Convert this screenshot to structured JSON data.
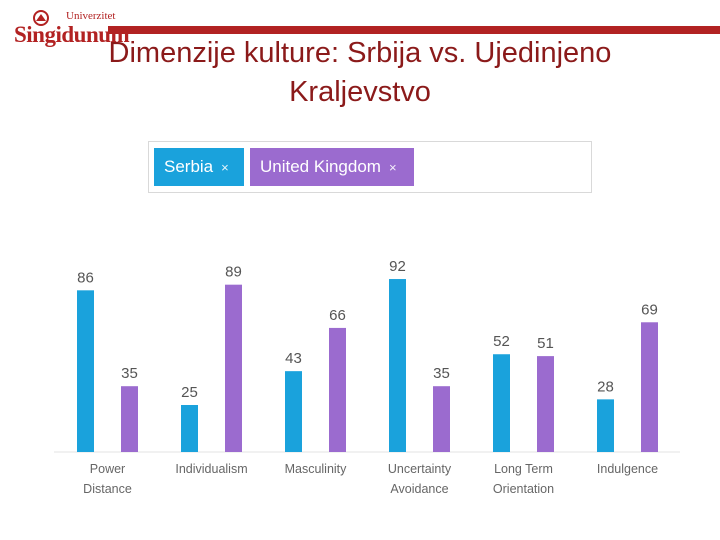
{
  "header": {
    "logo_small": "Univerzitet",
    "logo_big": "Singidunum",
    "title": "Dimenzije kulture: Srbija vs. Ujedinjeno\nKraljevstvo"
  },
  "selector": {
    "chips": [
      {
        "label": "Serbia",
        "close": "×"
      },
      {
        "label": "United Kingdom",
        "close": "×"
      }
    ]
  },
  "colors": {
    "brand_red": "#b22222",
    "title_red": "#8b1a1a",
    "serbia": "#1aa2dc",
    "uk": "#9b6bcf"
  },
  "chart_data": {
    "type": "bar",
    "categories": [
      [
        "Power",
        "Distance"
      ],
      [
        "Individualism"
      ],
      [
        "Masculinity"
      ],
      [
        "Uncertainty",
        "Avoidance"
      ],
      [
        "Long Term",
        "Orientation"
      ],
      [
        "Indulgence"
      ]
    ],
    "series": [
      {
        "name": "Serbia",
        "values": [
          86,
          25,
          43,
          92,
          52,
          28
        ]
      },
      {
        "name": "United Kingdom",
        "values": [
          35,
          89,
          66,
          35,
          51,
          69
        ]
      }
    ],
    "ylim": [
      0,
      100
    ],
    "grid": false,
    "legend": "top-left"
  }
}
